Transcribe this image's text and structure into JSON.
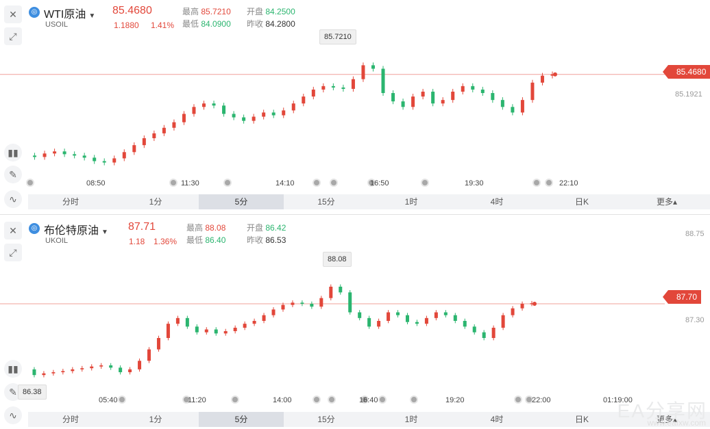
{
  "panels": {
    "wti": {
      "name": "WTI原油",
      "code": "USOIL",
      "last": "85.4680",
      "change": "1.1880",
      "change_pct": "1.41%",
      "high_label": "最高",
      "high": "85.7210",
      "low_label": "最低",
      "low": "84.0900",
      "open_label": "开盘",
      "open": "84.2500",
      "prev_label": "昨收",
      "prev": "84.2800",
      "high_marker": "85.7210",
      "price_tag": "85.4680",
      "axis_label": "85.1921",
      "times": [
        "08:50",
        "11:30",
        "14:10",
        "16:50",
        "19:30",
        "22:10"
      ]
    },
    "brent": {
      "name": "布伦特原油",
      "code": "UKOIL",
      "last": "87.71",
      "change": "1.18",
      "change_pct": "1.36%",
      "high_label": "最高",
      "high": "88.08",
      "low_label": "最低",
      "low": "86.40",
      "open_label": "开盘",
      "open": "86.42",
      "prev_label": "昨收",
      "prev": "86.53",
      "high_marker": "88.08",
      "low_marker": "86.38",
      "price_tag": "87.70",
      "axis_label_top": "88.75",
      "axis_label": "87.30",
      "times": [
        "05:40",
        "11:20",
        "14:00",
        "16:40",
        "19:20",
        "22:00",
        "01:19:00"
      ]
    }
  },
  "timeframes": [
    "分时",
    "1分",
    "5分",
    "15分",
    "1时",
    "4时",
    "日K",
    "更多▴"
  ],
  "active_timeframe": "5分",
  "watermark": {
    "text": "EA分享网",
    "url": "www.eafxw.com"
  },
  "colors": {
    "up": "#e2473a",
    "down": "#2bb56f",
    "accent": "#3e8ee0"
  },
  "chart_data": [
    {
      "type": "candlestick",
      "title": "WTI原油",
      "x_ticks": [
        "08:50",
        "11:30",
        "14:10",
        "16:50",
        "19:30",
        "22:10"
      ],
      "ylim": [
        83.9,
        85.85
      ],
      "series": [
        {
          "values": [
            84.3,
            84.28,
            84.33,
            84.36,
            84.32,
            84.3,
            84.27,
            84.22,
            84.2,
            84.26,
            84.35,
            84.45,
            84.55,
            84.62,
            84.7,
            84.78,
            84.9,
            85.0,
            85.05,
            85.02,
            84.9,
            84.85,
            84.8,
            84.86,
            84.92,
            84.88,
            84.95,
            85.05,
            85.15,
            85.25,
            85.3,
            85.28,
            85.26,
            85.4,
            85.6,
            85.55,
            85.2,
            85.08,
            85.0,
            85.15,
            85.22,
            85.05,
            85.1,
            85.22,
            85.3,
            85.25,
            85.2,
            85.1,
            85.0,
            84.92,
            85.1,
            85.35,
            85.45,
            85.47
          ]
        }
      ]
    },
    {
      "type": "candlestick",
      "title": "布伦特原油",
      "x_ticks": [
        "05:40",
        "11:20",
        "14:00",
        "16:40",
        "19:20",
        "22:00"
      ],
      "ylim": [
        86.2,
        88.3
      ],
      "series": [
        {
          "values": [
            86.55,
            86.45,
            86.48,
            86.5,
            86.52,
            86.55,
            86.57,
            86.6,
            86.62,
            86.58,
            86.5,
            86.55,
            86.7,
            86.9,
            87.1,
            87.35,
            87.45,
            87.3,
            87.2,
            87.25,
            87.18,
            87.22,
            87.28,
            87.35,
            87.4,
            87.5,
            87.6,
            87.68,
            87.72,
            87.7,
            87.65,
            87.8,
            88.0,
            87.9,
            87.55,
            87.45,
            87.3,
            87.4,
            87.55,
            87.5,
            87.38,
            87.35,
            87.45,
            87.55,
            87.5,
            87.4,
            87.3,
            87.2,
            87.1,
            87.28,
            87.5,
            87.62,
            87.7,
            87.71
          ]
        }
      ]
    }
  ]
}
